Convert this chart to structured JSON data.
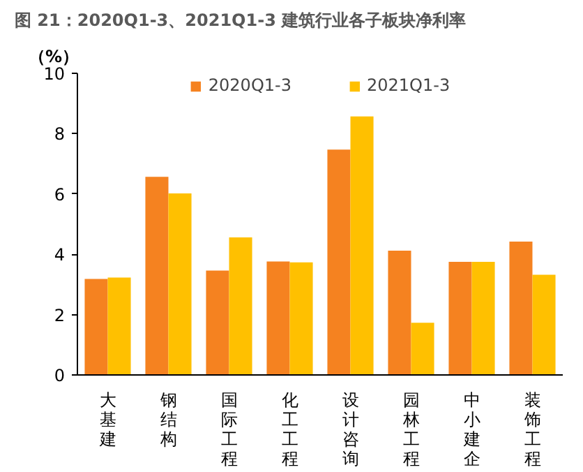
{
  "chart_data": {
    "type": "bar",
    "title": "图 21：2020Q1-3、2021Q1-3 建筑行业各子板块净利率",
    "ylabel": "（%）",
    "categories": [
      "大基建",
      "钢结构",
      "国际工程",
      "化工工程",
      "设计咨询",
      "园林工程",
      "中小建企",
      "装饰工程"
    ],
    "series": [
      {
        "name": "2020Q1-3",
        "color": "#f58220",
        "values": [
          3.18,
          6.57,
          3.46,
          3.76,
          7.47,
          4.12,
          3.75,
          4.42
        ]
      },
      {
        "name": "2021Q1-3",
        "color": "#ffc000",
        "values": [
          3.23,
          6.02,
          4.56,
          3.73,
          8.57,
          1.73,
          3.75,
          3.32
        ]
      }
    ],
    "ylim": [
      0,
      10
    ],
    "yticks": [
      0,
      2,
      4,
      6,
      8,
      10
    ],
    "grid": false,
    "legend": "top"
  }
}
